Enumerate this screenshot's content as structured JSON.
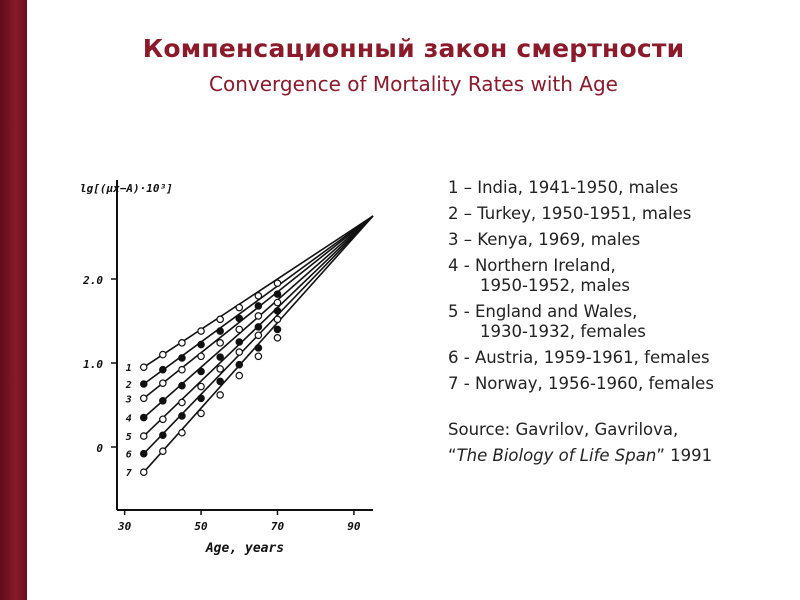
{
  "title": "Компенсационный закон смертности",
  "subtitle": "Convergence of Mortality Rates with Age",
  "legend": [
    {
      "line1": "1 – India, 1941-1950, males",
      "line2": ""
    },
    {
      "line1": "2 – Turkey, 1950-1951, males",
      "line2": ""
    },
    {
      "line1": "3 – Kenya, 1969, males",
      "line2": ""
    },
    {
      "line1": "4 - Northern Ireland,",
      "line2": "1950-1952, males"
    },
    {
      "line1": "5 - England and Wales,",
      "line2": "1930-1932, females"
    },
    {
      "line1": "6 - Austria, 1959-1961, females",
      "line2": ""
    },
    {
      "line1": "7 - Norway, 1956-1960, females",
      "line2": ""
    }
  ],
  "source": {
    "line1": "Source: Gavrilov, Gavrilova,",
    "open_quote": "“",
    "book": "The Biology of Life Span",
    "close_quote": "”",
    "year": " 1991"
  },
  "chart_data": {
    "type": "line",
    "ylabel": "lg[(μx−A)·10³]",
    "xlabel": "Age, years",
    "xlim": [
      28,
      95
    ],
    "ylim": [
      -0.75,
      3.0
    ],
    "xticks": [
      30,
      50,
      70,
      90
    ],
    "yticks": [
      {
        "value": 0,
        "label": "0"
      },
      {
        "value": 1,
        "label": "1.0"
      },
      {
        "value": 2,
        "label": "2.0"
      }
    ],
    "convergence_point": {
      "x": 95,
      "y": 2.75
    },
    "series": [
      {
        "name": "1",
        "marker": "open",
        "x": [
          35,
          40,
          45,
          50,
          55,
          60,
          65,
          70
        ],
        "y": [
          0.95,
          1.1,
          1.24,
          1.38,
          1.52,
          1.66,
          1.8,
          1.95
        ]
      },
      {
        "name": "2",
        "marker": "filled",
        "x": [
          35,
          40,
          45,
          50,
          55,
          60,
          65,
          70
        ],
        "y": [
          0.75,
          0.92,
          1.06,
          1.22,
          1.38,
          1.53,
          1.68,
          1.82
        ]
      },
      {
        "name": "3",
        "marker": "open",
        "x": [
          35,
          40,
          45,
          50,
          55,
          60,
          65,
          70
        ],
        "y": [
          0.58,
          0.76,
          0.92,
          1.08,
          1.24,
          1.4,
          1.56,
          1.72
        ]
      },
      {
        "name": "4",
        "marker": "filled",
        "x": [
          35,
          40,
          45,
          50,
          55,
          60,
          65,
          70
        ],
        "y": [
          0.35,
          0.55,
          0.73,
          0.9,
          1.07,
          1.25,
          1.43,
          1.62
        ]
      },
      {
        "name": "5",
        "marker": "open",
        "x": [
          35,
          40,
          45,
          50,
          55,
          60,
          65,
          70
        ],
        "y": [
          0.13,
          0.33,
          0.53,
          0.72,
          0.93,
          1.13,
          1.33,
          1.52
        ]
      },
      {
        "name": "6",
        "marker": "filled",
        "x": [
          35,
          40,
          45,
          50,
          55,
          60,
          65,
          70
        ],
        "y": [
          -0.08,
          0.14,
          0.37,
          0.58,
          0.78,
          0.98,
          1.18,
          1.4
        ]
      },
      {
        "name": "7",
        "marker": "open",
        "x": [
          35,
          40,
          45,
          50,
          55,
          60,
          65,
          70
        ],
        "y": [
          -0.3,
          -0.05,
          0.17,
          0.4,
          0.62,
          0.85,
          1.08,
          1.3
        ]
      }
    ]
  }
}
